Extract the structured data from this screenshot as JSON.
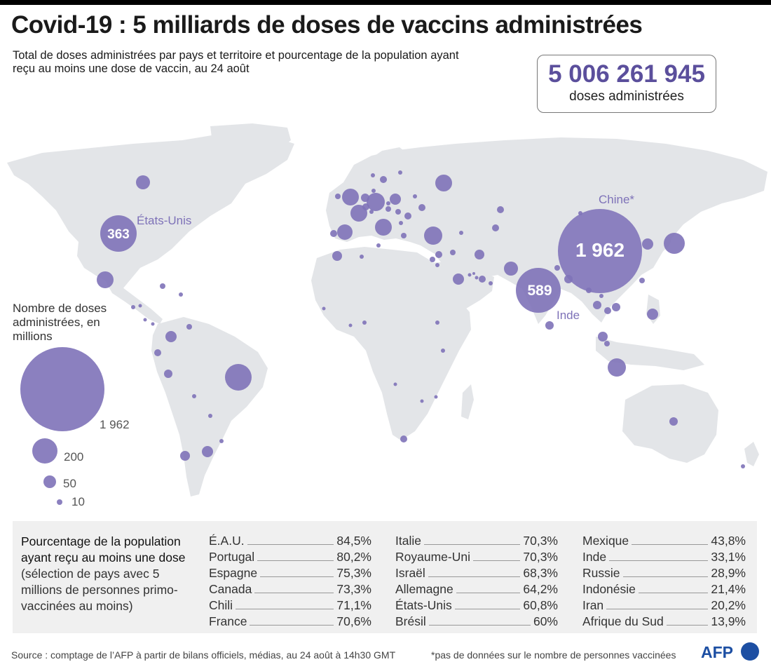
{
  "title": "Covid-19 : 5 milliards de doses de vaccins administrées",
  "subtitle": "Total de doses administrées par pays et territoire et pourcentage de la population ayant reçu au moins une dose de vaccin, au 24 août",
  "total": {
    "value": "5 006 261 945",
    "label": "doses administrées"
  },
  "map_labels": {
    "usa": {
      "name": "États-Unis",
      "value": "363"
    },
    "china": {
      "name": "Chine*",
      "value": "1 962"
    },
    "india": {
      "name": "Inde",
      "value": "589"
    }
  },
  "legend": {
    "title": "Nombre de doses administrées, en millions",
    "items": [
      "1 962",
      "200",
      "50",
      "10"
    ]
  },
  "colors": {
    "bubble": "#7e72b8",
    "land": "#e3e5e8",
    "accent": "#5b4f9c",
    "afp": "#1d4fa3"
  },
  "table": {
    "description_bold": "Pourcentage de la population ayant reçu au moins une dose",
    "description_note": "(sélection de pays avec 5 millions de personnes primo-vaccinées au moins)",
    "columns": [
      [
        {
          "country": "É.A.U.",
          "value": "84,5%"
        },
        {
          "country": "Portugal",
          "value": "80,2%"
        },
        {
          "country": "Espagne",
          "value": "75,3%"
        },
        {
          "country": "Canada",
          "value": "73,3%"
        },
        {
          "country": "Chili",
          "value": "71,1%"
        },
        {
          "country": "France",
          "value": "70,6%"
        }
      ],
      [
        {
          "country": "Italie",
          "value": "70,3%"
        },
        {
          "country": "Royaume-Uni",
          "value": "70,3%"
        },
        {
          "country": "Israël",
          "value": "68,3%"
        },
        {
          "country": "Allemagne",
          "value": "64,2%"
        },
        {
          "country": "États-Unis",
          "value": "60,8%"
        },
        {
          "country": "Brésil",
          "value": "60%"
        }
      ],
      [
        {
          "country": "Mexique",
          "value": "43,8%"
        },
        {
          "country": "Inde",
          "value": "33,1%"
        },
        {
          "country": "Russie",
          "value": "28,9%"
        },
        {
          "country": "Indonésie",
          "value": "21,4%"
        },
        {
          "country": "Iran",
          "value": "20,2%"
        },
        {
          "country": "Afrique du Sud",
          "value": "13,9%"
        }
      ]
    ]
  },
  "source": "Source : comptage de l’AFP à partir de bilans officiels, médias, au 24 août à 14h30 GMT",
  "note": "*pas de données sur le nombre de personnes vaccinées",
  "logo": "AFP"
}
